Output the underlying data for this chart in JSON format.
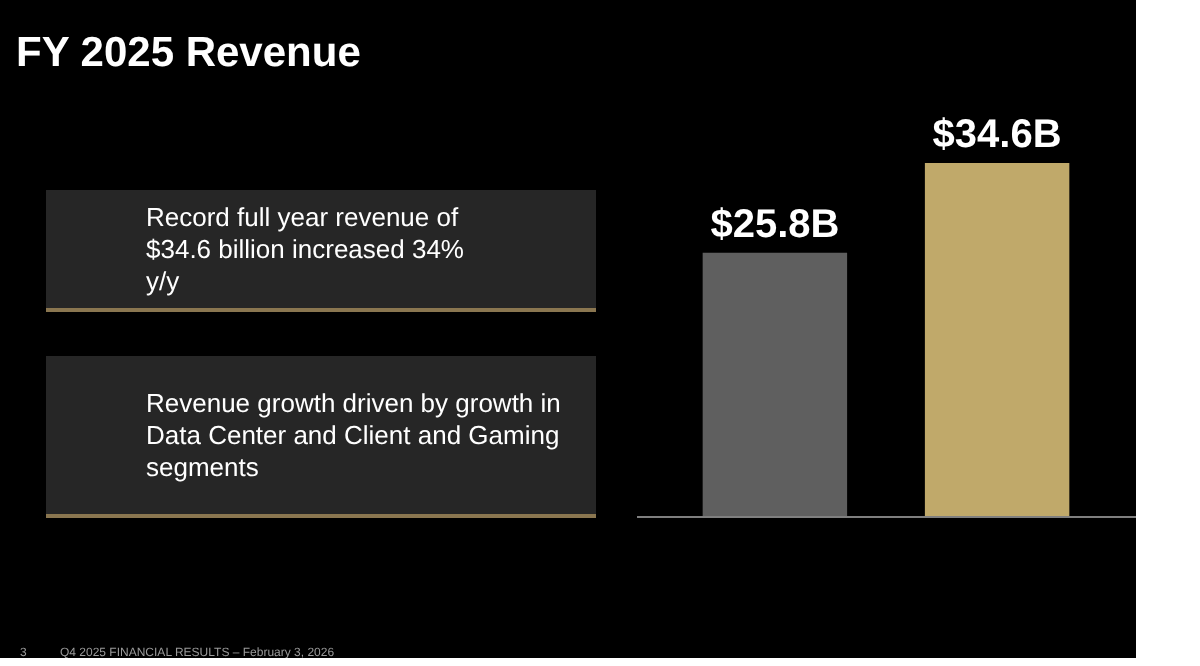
{
  "chart_data": {
    "type": "bar",
    "title": "FY 2025 Revenue",
    "categories": [
      null,
      null
    ],
    "values": [
      25.8,
      34.6
    ],
    "colors": [
      "#5f5f5f",
      "#c0a96a"
    ],
    "value_labels": [
      "$25.8B",
      "$34.6B"
    ],
    "legend": false,
    "grid": false,
    "annotations": [
      "Record full year revenue of $34.6 billion increased 34% y/y",
      "Revenue growth driven by growth in Data Center and Client and Gaming segments",
      "3",
      "Q4 2025 FINANCIAL RESULTS – February 3, 2026"
    ]
  }
}
